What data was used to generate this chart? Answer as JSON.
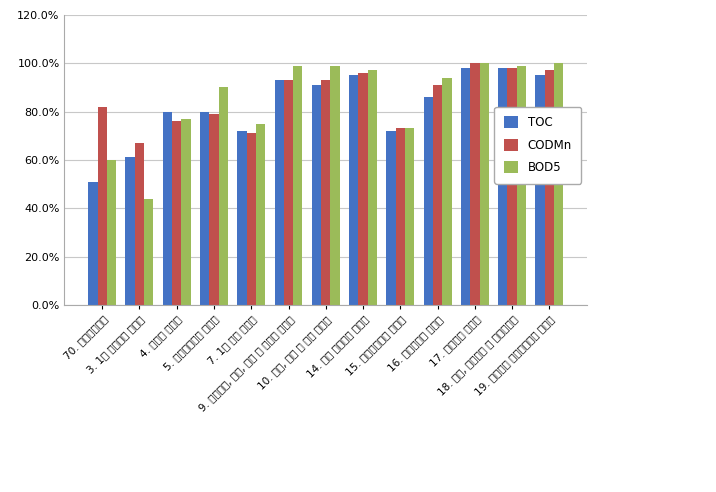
{
  "categories": [
    "70. 화력발전시설",
    "3. 1차 비철금속 제조업",
    "4. 반도체 제조업",
    "5. 기초화학물질 제조업",
    "7. 1차 철강 제조업",
    "9. 섬유제품, 염색, 정리 및 마무리 가공업",
    "10. 펄프, 종이 및 판지 제조업",
    "14. 기타 화학제품 제조업",
    "15. 플라스틱제품 제조업",
    "16. 석유정제품 제조업",
    "17. 알콜음료 제조업",
    "18. 도축, 육류가공 및 저장처리업",
    "19. 합성고무 플라스틱물질 제조업"
  ],
  "TOC": [
    0.51,
    0.61,
    0.8,
    0.8,
    0.72,
    0.93,
    0.91,
    0.95,
    0.72,
    0.86,
    0.98,
    0.98,
    0.95
  ],
  "CODMn": [
    0.82,
    0.67,
    0.76,
    0.79,
    0.71,
    0.93,
    0.93,
    0.96,
    0.73,
    0.91,
    1.0,
    0.98,
    0.97
  ],
  "BOD5": [
    0.6,
    0.44,
    0.77,
    0.9,
    0.75,
    0.99,
    0.99,
    0.97,
    0.73,
    0.94,
    1.0,
    0.99,
    1.0
  ],
  "bar_colors": {
    "TOC": "#4472C4",
    "CODMn": "#C0504D",
    "BOD5": "#9BBB59"
  },
  "ylim": [
    0.0,
    1.2
  ],
  "yticks": [
    0.0,
    0.2,
    0.4,
    0.6,
    0.8,
    1.0,
    1.2
  ],
  "ytick_labels": [
    "0.0%",
    "20.0%",
    "40.0%",
    "60.0%",
    "80.0%",
    "100.0%",
    "120.0%"
  ],
  "bar_width": 0.25,
  "legend_labels": [
    "TOC",
    "CODMn",
    "BOD5"
  ],
  "background_color": "#FFFFFF",
  "grid_color": "#C8C8C8",
  "label_rotation": 45,
  "label_fontsize": 7.5
}
